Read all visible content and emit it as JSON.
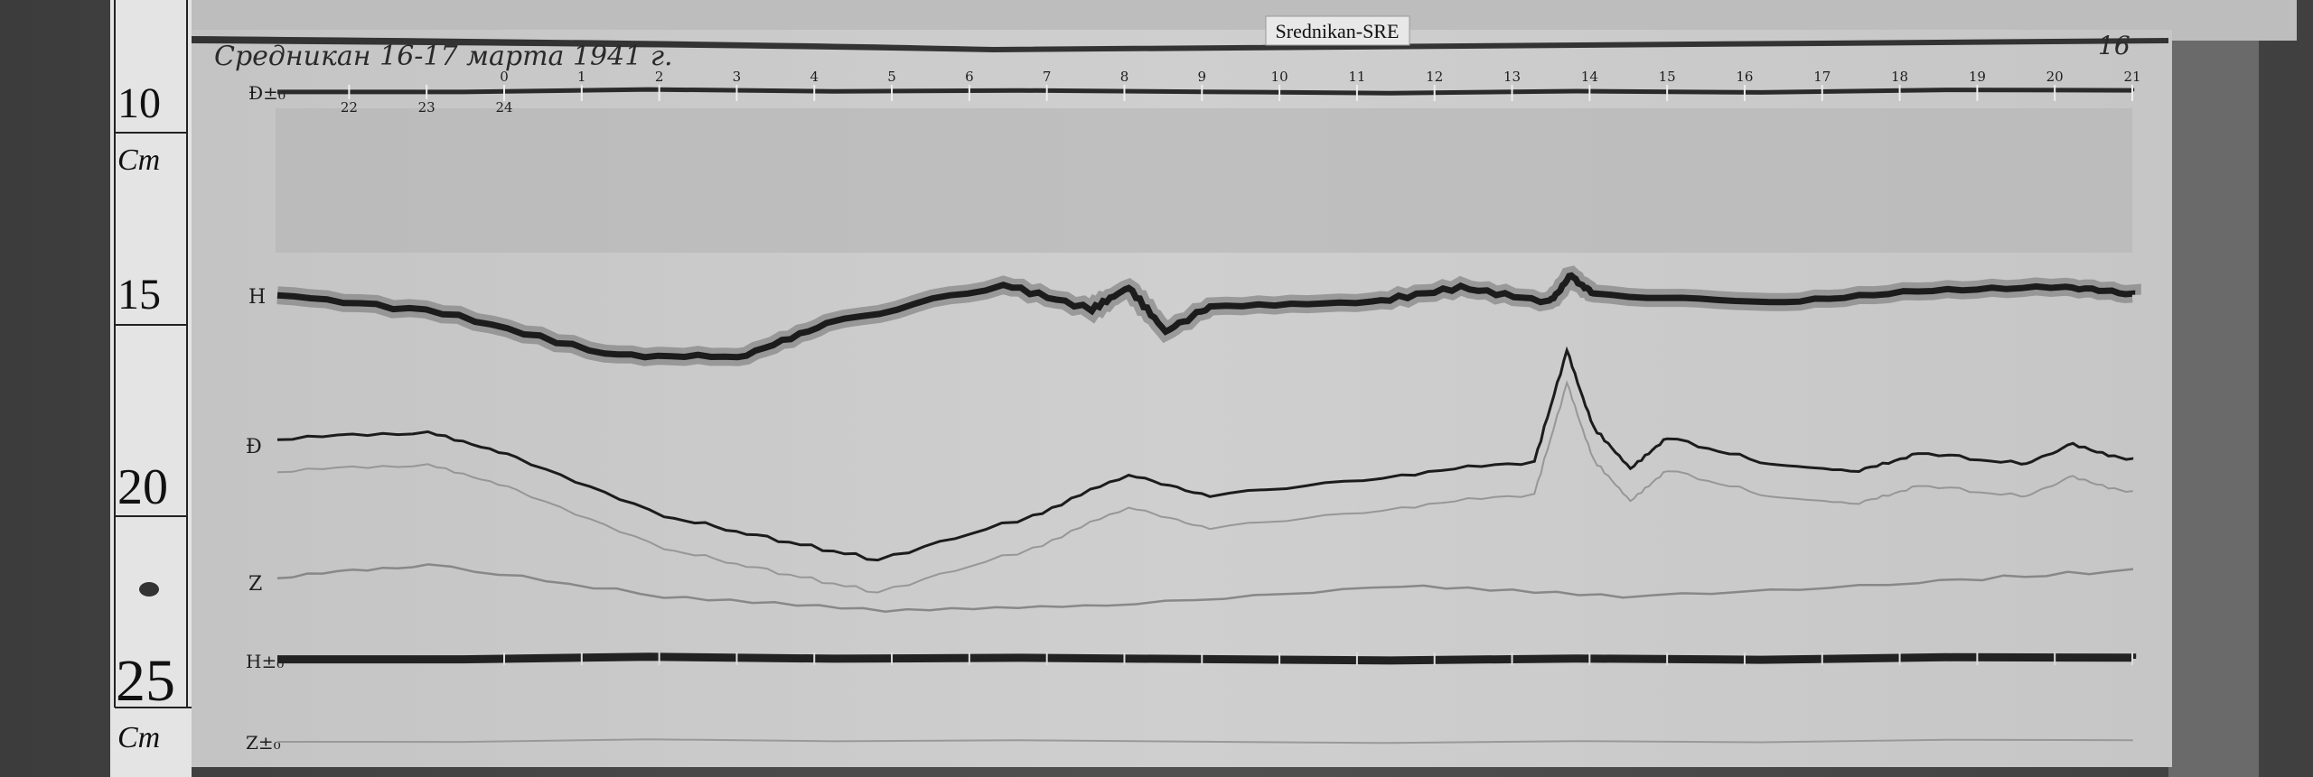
{
  "record": {
    "title": "Средникан 16-17 марта 1941 г.",
    "sheet_number": "16",
    "station_label": "Srednikan-SRE"
  },
  "ruler": {
    "marks": [
      "10",
      "15",
      "20",
      "25"
    ],
    "unit_top": "Cm",
    "unit_bottom": "Cm"
  },
  "hour_scale": {
    "top_labels": [
      "0",
      "1",
      "2",
      "3",
      "4",
      "5",
      "6",
      "7",
      "8",
      "9",
      "10",
      "11",
      "12",
      "13",
      "14",
      "15",
      "16",
      "17",
      "18",
      "19",
      "20",
      "21"
    ],
    "bottom_labels": [
      "22",
      "23",
      "24"
    ]
  },
  "trace_labels": {
    "d_base": "Ð±₀",
    "h": "H",
    "d": "Ð",
    "z": "Z",
    "h_base": "H±₀",
    "z_base": "Z±₀"
  },
  "colors": {
    "paper": "#c9c9c9",
    "trace": "#222222",
    "wood": "#4a4a4a",
    "ruler": "#e6e6e6"
  }
}
